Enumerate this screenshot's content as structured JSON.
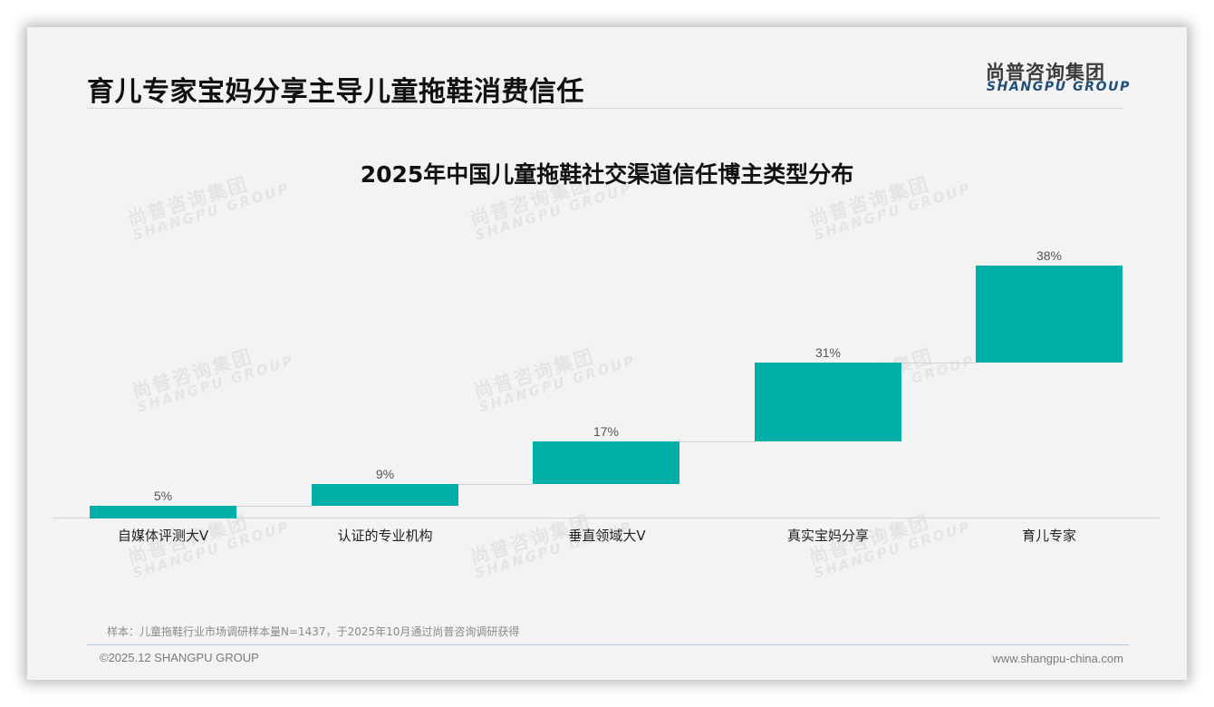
{
  "slide": {
    "title": "育儿专家宝妈分享主导儿童拖鞋消费信任",
    "logo": {
      "cn": "尚普咨询集团",
      "en": "SHANGPU GROUP"
    },
    "watermark": {
      "cn": "尚普咨询集团",
      "en": "SHANGPU GROUP"
    },
    "note": "样本：儿童拖鞋行业市场调研样本量N=1437，于2025年10月通过尚普咨询调研获得",
    "copyright": "©2025.12 SHANGPU GROUP",
    "website": "www.shangpu-china.com"
  },
  "colors": {
    "bar": "#00b0a8",
    "logo_en": "#1f4e79",
    "background": "#f3f3f3"
  },
  "chart_data": {
    "type": "bar",
    "subtype": "waterfall-stepped",
    "title": "2025年中国儿童拖鞋社交渠道信任博主类型分布",
    "categories": [
      "自媒体评测大V",
      "认证的专业机构",
      "垂直领域大V",
      "真实宝妈分享",
      "育儿专家"
    ],
    "values": [
      5,
      9,
      17,
      31,
      38
    ],
    "labels": [
      "5%",
      "9%",
      "17%",
      "31%",
      "38%"
    ],
    "unit": "%",
    "xlabel": "",
    "ylabel": "",
    "grid": false,
    "legend": null
  }
}
